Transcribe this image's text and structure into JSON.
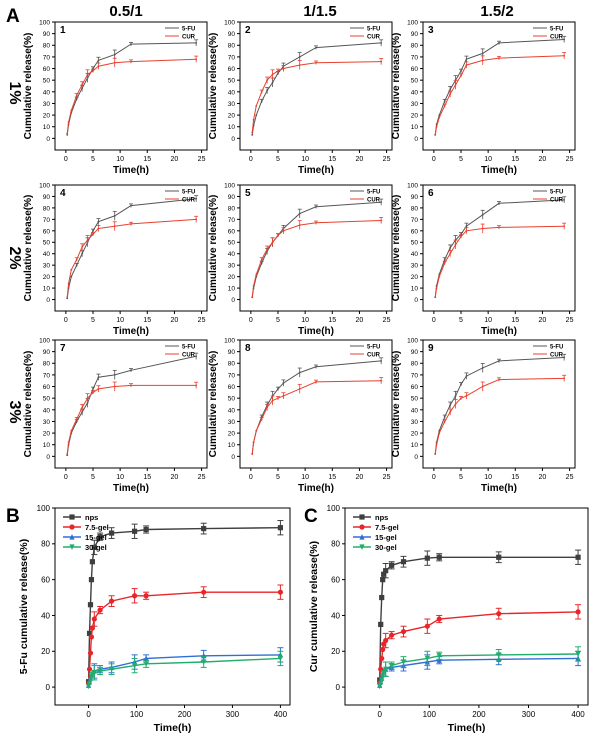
{
  "panel_labels": {
    "A": "A",
    "B": "B",
    "C": "C"
  },
  "column_headers": [
    "0.5/1",
    "1/1.5",
    "1.5/2"
  ],
  "row_labels": [
    "1%",
    "2%",
    "3%"
  ],
  "colors": {
    "5-FU": "#555555",
    "CUR": "#e8402e",
    "nps": "#3f3f3f",
    "7.5-gel": "#e8262a",
    "15-gel": "#2f6fd6",
    "30-gel": "#22ad6a"
  },
  "chart_data": [
    {
      "type": "line",
      "panel": "A",
      "number": "1",
      "xlabel": "Time(h)",
      "ylabel": "Cumulative release(%)",
      "xlim": [
        -2,
        26
      ],
      "ylim": [
        -10,
        100
      ],
      "xticks": [
        0,
        5,
        10,
        15,
        20,
        25
      ],
      "yticks": [
        0,
        10,
        20,
        30,
        40,
        50,
        60,
        70,
        80,
        90,
        100
      ],
      "x": [
        0.25,
        0.5,
        1,
        2,
        3,
        4,
        5,
        6,
        9,
        12,
        24
      ],
      "series": [
        {
          "name": "5-FU",
          "values": [
            3,
            12,
            22,
            34,
            43,
            52,
            60,
            67,
            72,
            81,
            82
          ]
        },
        {
          "name": "CUR",
          "values": [
            4,
            14,
            24,
            37,
            46,
            55,
            58,
            62,
            65,
            66,
            68
          ]
        }
      ]
    },
    {
      "type": "line",
      "panel": "A",
      "number": "2",
      "xlabel": "Time(h)",
      "ylabel": "Cumulative release(%)",
      "xlim": [
        -2,
        26
      ],
      "ylim": [
        -10,
        100
      ],
      "xticks": [
        0,
        5,
        10,
        15,
        20,
        25
      ],
      "yticks": [
        0,
        10,
        20,
        30,
        40,
        50,
        60,
        70,
        80,
        90,
        100
      ],
      "x": [
        0.25,
        0.5,
        1,
        2,
        3,
        4,
        5,
        6,
        9,
        12,
        24
      ],
      "series": [
        {
          "name": "5-FU",
          "values": [
            3,
            11,
            20,
            32,
            41,
            48,
            56,
            62,
            70,
            78,
            82
          ]
        },
        {
          "name": "CUR",
          "values": [
            5,
            16,
            28,
            40,
            50,
            55,
            58,
            60,
            63,
            65,
            66
          ]
        }
      ]
    },
    {
      "type": "line",
      "panel": "A",
      "number": "3",
      "xlabel": "Time(h)",
      "ylabel": "Cumulative release(%)",
      "xlim": [
        -2,
        26
      ],
      "ylim": [
        -10,
        100
      ],
      "xticks": [
        0,
        5,
        10,
        15,
        20,
        25
      ],
      "yticks": [
        0,
        10,
        20,
        30,
        40,
        50,
        60,
        70,
        80,
        90,
        100
      ],
      "x": [
        0.25,
        0.5,
        1,
        2,
        3,
        4,
        5,
        6,
        9,
        12,
        24
      ],
      "series": [
        {
          "name": "5-FU",
          "values": [
            3,
            12,
            20,
            32,
            42,
            50,
            58,
            68,
            73,
            82,
            85
          ]
        },
        {
          "name": "CUR",
          "values": [
            3,
            10,
            18,
            28,
            38,
            46,
            54,
            63,
            67,
            69,
            71
          ]
        }
      ]
    },
    {
      "type": "line",
      "panel": "A",
      "number": "4",
      "xlabel": "Time(h)",
      "ylabel": "Cumulative release(%)",
      "xlim": [
        -2,
        26
      ],
      "ylim": [
        -10,
        100
      ],
      "xticks": [
        0,
        5,
        10,
        15,
        20,
        25
      ],
      "yticks": [
        0,
        10,
        20,
        30,
        40,
        50,
        60,
        70,
        80,
        90,
        100
      ],
      "x": [
        0.25,
        0.5,
        1,
        2,
        3,
        4,
        5,
        6,
        9,
        12,
        24
      ],
      "series": [
        {
          "name": "5-FU",
          "values": [
            1,
            10,
            20,
            30,
            40,
            50,
            60,
            68,
            73,
            82,
            88
          ]
        },
        {
          "name": "CUR",
          "values": [
            2,
            14,
            26,
            35,
            46,
            52,
            57,
            62,
            64,
            66,
            70
          ]
        }
      ]
    },
    {
      "type": "line",
      "panel": "A",
      "number": "5",
      "xlabel": "Time(h)",
      "ylabel": "Cumulative release(%)",
      "xlim": [
        -2,
        26
      ],
      "ylim": [
        -10,
        100
      ],
      "xticks": [
        0,
        5,
        10,
        15,
        20,
        25
      ],
      "yticks": [
        0,
        10,
        20,
        30,
        40,
        50,
        60,
        70,
        80,
        90,
        100
      ],
      "x": [
        0.25,
        0.5,
        1,
        2,
        3,
        4,
        5,
        6,
        9,
        12,
        24
      ],
      "series": [
        {
          "name": "5-FU",
          "values": [
            2,
            10,
            20,
            32,
            42,
            50,
            56,
            62,
            75,
            81,
            85
          ]
        },
        {
          "name": "CUR",
          "values": [
            2,
            12,
            22,
            35,
            44,
            50,
            56,
            60,
            65,
            67,
            69
          ]
        }
      ]
    },
    {
      "type": "line",
      "panel": "A",
      "number": "6",
      "xlabel": "Time(h)",
      "ylabel": "Cumulative release(%)",
      "xlim": [
        -2,
        26
      ],
      "ylim": [
        -10,
        100
      ],
      "xticks": [
        0,
        5,
        10,
        15,
        20,
        25
      ],
      "yticks": [
        0,
        10,
        20,
        30,
        40,
        50,
        60,
        70,
        80,
        90,
        100
      ],
      "x": [
        0.25,
        0.5,
        1,
        2,
        3,
        4,
        5,
        6,
        9,
        12,
        24
      ],
      "series": [
        {
          "name": "5-FU",
          "values": [
            2,
            12,
            22,
            35,
            45,
            52,
            57,
            64,
            74,
            84,
            87
          ]
        },
        {
          "name": "CUR",
          "values": [
            2,
            10,
            20,
            32,
            40,
            48,
            55,
            60,
            62,
            63,
            64
          ]
        }
      ]
    },
    {
      "type": "line",
      "panel": "A",
      "number": "7",
      "xlabel": "Time(h)",
      "ylabel": "Cumulative release(%)",
      "xlim": [
        -2,
        26
      ],
      "ylim": [
        -10,
        100
      ],
      "xticks": [
        0,
        5,
        10,
        15,
        20,
        25
      ],
      "yticks": [
        0,
        10,
        20,
        30,
        40,
        50,
        60,
        70,
        80,
        90,
        100
      ],
      "x": [
        0.25,
        0.5,
        1,
        2,
        3,
        4,
        5,
        6,
        9,
        12,
        24
      ],
      "series": [
        {
          "name": "5-FU",
          "values": [
            1,
            10,
            20,
            30,
            38,
            46,
            58,
            68,
            70,
            74,
            86
          ]
        },
        {
          "name": "CUR",
          "values": [
            2,
            12,
            22,
            32,
            42,
            50,
            55,
            58,
            60,
            61,
            61
          ]
        }
      ]
    },
    {
      "type": "line",
      "panel": "A",
      "number": "8",
      "xlabel": "Time(h)",
      "ylabel": "Cumulative release(%)",
      "xlim": [
        -2,
        26
      ],
      "ylim": [
        -10,
        100
      ],
      "xticks": [
        0,
        5,
        10,
        15,
        20,
        25
      ],
      "yticks": [
        0,
        10,
        20,
        30,
        40,
        50,
        60,
        70,
        80,
        90,
        100
      ],
      "x": [
        0.25,
        0.5,
        1,
        2,
        3,
        4,
        5,
        6,
        9,
        12,
        24
      ],
      "series": [
        {
          "name": "5-FU",
          "values": [
            2,
            12,
            22,
            34,
            44,
            52,
            58,
            63,
            72,
            77,
            82
          ]
        },
        {
          "name": "CUR",
          "values": [
            2,
            12,
            22,
            32,
            42,
            48,
            50,
            52,
            58,
            64,
            65
          ]
        }
      ]
    },
    {
      "type": "line",
      "panel": "A",
      "number": "9",
      "xlabel": "Time(h)",
      "ylabel": "Cumulative release(%)",
      "xlim": [
        -2,
        26
      ],
      "ylim": [
        -10,
        100
      ],
      "xticks": [
        0,
        5,
        10,
        15,
        20,
        25
      ],
      "yticks": [
        0,
        10,
        20,
        30,
        40,
        50,
        60,
        70,
        80,
        90,
        100
      ],
      "x": [
        0.25,
        0.5,
        1,
        2,
        3,
        4,
        5,
        6,
        9,
        12,
        24
      ],
      "series": [
        {
          "name": "5-FU",
          "values": [
            2,
            12,
            22,
            34,
            44,
            52,
            62,
            69,
            76,
            82,
            85
          ]
        },
        {
          "name": "CUR",
          "values": [
            2,
            10,
            20,
            30,
            38,
            45,
            50,
            52,
            60,
            66,
            67
          ]
        }
      ]
    },
    {
      "type": "line",
      "panel": "B",
      "xlabel": "Time(h)",
      "ylabel": "5-Fu cumulative release(%)",
      "xlim": [
        -70,
        420
      ],
      "ylim": [
        -10,
        100
      ],
      "xticks": [
        0,
        100,
        200,
        300,
        400
      ],
      "yticks": [
        0,
        20,
        40,
        60,
        80,
        100
      ],
      "x": [
        0,
        2,
        4,
        6,
        8,
        12,
        24,
        48,
        96,
        120,
        240,
        400
      ],
      "series": [
        {
          "name": "nps",
          "values": [
            3,
            30,
            46,
            60,
            70,
            78,
            84,
            86,
            87,
            88,
            88.5,
            89
          ]
        },
        {
          "name": "7.5-gel",
          "values": [
            2,
            10,
            19,
            28,
            33,
            38,
            43,
            48,
            51,
            51,
            53,
            53
          ]
        },
        {
          "name": "15-gel",
          "values": [
            1,
            3,
            5,
            7,
            8,
            9,
            10,
            11,
            14,
            16,
            17.5,
            18
          ]
        },
        {
          "name": "30-gel",
          "values": [
            0.5,
            2,
            4,
            6,
            7,
            8,
            9,
            10,
            12,
            13,
            14,
            16
          ]
        }
      ]
    },
    {
      "type": "line",
      "panel": "C",
      "xlabel": "Time(h)",
      "ylabel": "Cur cumulative release(%)",
      "xlim": [
        -70,
        420
      ],
      "ylim": [
        -10,
        100
      ],
      "xticks": [
        0,
        100,
        200,
        300,
        400
      ],
      "yticks": [
        0,
        20,
        40,
        60,
        80,
        100
      ],
      "x": [
        0,
        2,
        4,
        6,
        8,
        12,
        24,
        48,
        96,
        120,
        240,
        400
      ],
      "series": [
        {
          "name": "nps",
          "values": [
            4,
            35,
            50,
            60,
            63,
            65,
            68,
            70,
            72,
            72.5,
            72.5,
            72.5
          ]
        },
        {
          "name": "7.5-gel",
          "values": [
            2,
            10,
            16,
            21,
            24,
            26,
            29,
            31,
            34,
            38,
            41,
            42
          ]
        },
        {
          "name": "15-gel",
          "values": [
            1,
            3,
            5,
            7,
            9,
            10,
            11,
            12,
            14,
            15,
            15.5,
            16
          ]
        },
        {
          "name": "30-gel",
          "values": [
            0.5,
            2,
            4,
            6,
            8,
            10,
            12,
            14,
            16,
            17.5,
            18,
            18.5
          ]
        }
      ]
    }
  ]
}
